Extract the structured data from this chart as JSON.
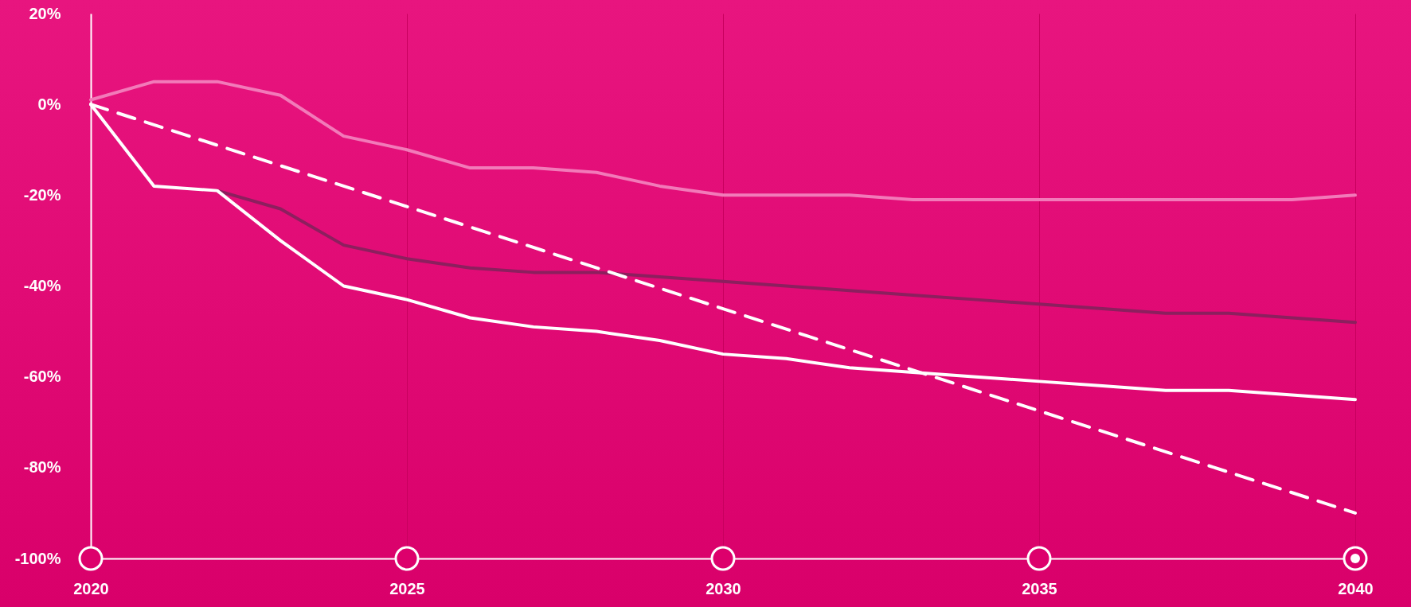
{
  "chart_data": {
    "type": "line",
    "xlim": [
      2020,
      2040
    ],
    "xticks": [
      2020,
      2025,
      2030,
      2035,
      2040
    ],
    "ylim": [
      -100,
      20
    ],
    "yticks": [
      {
        "value": 20,
        "label": "20%"
      },
      {
        "value": 0,
        "label": "0%"
      },
      {
        "value": -20,
        "label": "-20%"
      },
      {
        "value": -40,
        "label": "-40%"
      },
      {
        "value": -60,
        "label": "-60%"
      },
      {
        "value": -80,
        "label": "-80%"
      },
      {
        "value": -100,
        "label": "-100%"
      }
    ],
    "grid": "x",
    "marker": "none",
    "series": [
      {
        "color": "#f27ab9",
        "x": [
          2020,
          2021,
          2022,
          2023,
          2024,
          2025,
          2026,
          2027,
          2028,
          2029,
          2030,
          2031,
          2032,
          2033,
          2034,
          2035,
          2036,
          2037,
          2038,
          2039,
          2040
        ],
        "values": [
          1,
          5,
          5,
          2,
          -7,
          -10,
          -14,
          -14,
          -15,
          -18,
          -20,
          -20,
          -20,
          -21,
          -21,
          -21,
          -21,
          -21,
          -21,
          -21,
          -20
        ]
      },
      {
        "color": "#8c1f5e",
        "x": [
          2022,
          2023,
          2024,
          2025,
          2026,
          2027,
          2028,
          2029,
          2030,
          2031,
          2032,
          2033,
          2034,
          2035,
          2036,
          2037,
          2038,
          2039,
          2040
        ],
        "values": [
          -19,
          -23,
          -31,
          -34,
          -36,
          -37,
          -37,
          -38,
          -39,
          -40,
          -41,
          -42,
          -43,
          -44,
          -45,
          -46,
          -46,
          -47,
          -48
        ]
      },
      {
        "color": "#ffffff",
        "x": [
          2020,
          2021,
          2022,
          2023,
          2024,
          2025,
          2026,
          2027,
          2028,
          2029,
          2030,
          2031,
          2032,
          2033,
          2034,
          2035,
          2036,
          2037,
          2038,
          2039,
          2040
        ],
        "values": [
          0,
          -18,
          -19,
          -30,
          -40,
          -43,
          -47,
          -49,
          -50,
          -52,
          -55,
          -56,
          -58,
          -59,
          -60,
          -61,
          -62,
          -63,
          -63,
          -64,
          -65
        ]
      },
      {
        "color": "#ffffff",
        "line_style": "dashed",
        "x": [
          2020,
          2040
        ],
        "values": [
          0,
          -90
        ]
      }
    ]
  }
}
